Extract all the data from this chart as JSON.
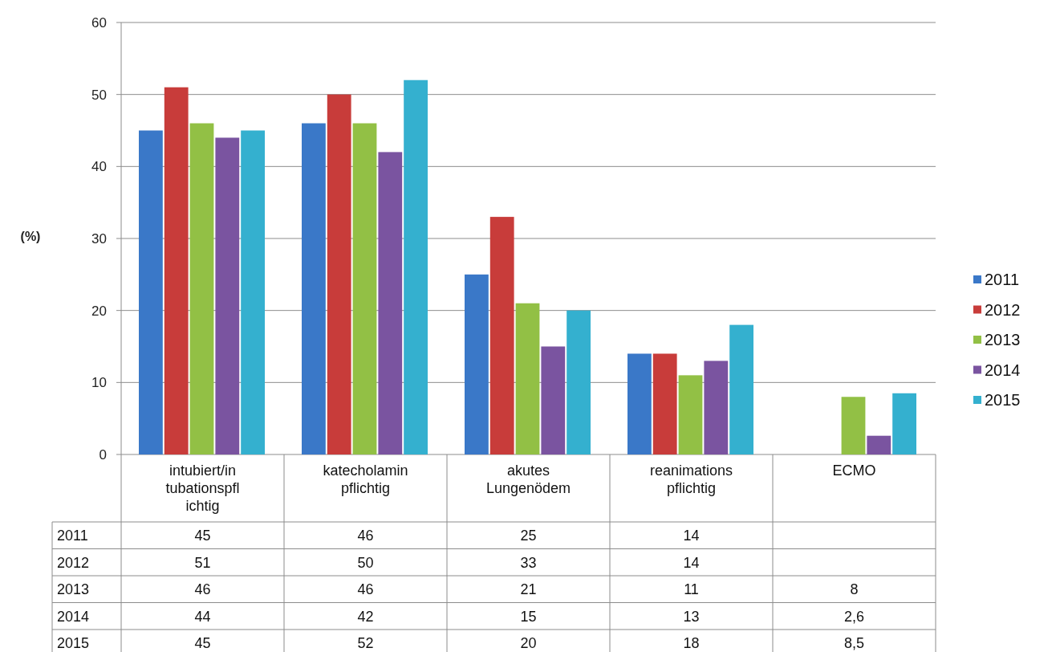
{
  "chart_data": {
    "type": "bar",
    "ylabel": "(%)",
    "categories": [
      "intubiert/intubationspflichtig",
      "katecholaminpflichtig",
      "akutes Lungenödem",
      "reanimationspflichtig",
      "ECMO"
    ],
    "series": [
      {
        "name": "2011",
        "color": "#3a78c8",
        "values": [
          45,
          46,
          25,
          14,
          null
        ],
        "value_labels": [
          "45",
          "46",
          "25",
          "14",
          null
        ]
      },
      {
        "name": "2012",
        "color": "#c83c3a",
        "values": [
          51,
          50,
          33,
          14,
          null
        ],
        "value_labels": [
          "51",
          "50",
          "33",
          "14",
          null
        ]
      },
      {
        "name": "2013",
        "color": "#92c045",
        "values": [
          46,
          46,
          21,
          11,
          8
        ],
        "value_labels": [
          "46",
          "46",
          "21",
          "11",
          "8"
        ]
      },
      {
        "name": "2014",
        "color": "#7a54a0",
        "values": [
          44,
          42,
          15,
          13,
          2.6
        ],
        "value_labels": [
          "44",
          "42",
          "15",
          "13",
          "2,6"
        ]
      },
      {
        "name": "2015",
        "color": "#34b0cf",
        "values": [
          45,
          52,
          20,
          18,
          8.5
        ],
        "value_labels": [
          "45",
          "52",
          "20",
          "18",
          "8,5"
        ]
      }
    ],
    "ylim": [
      0,
      60
    ],
    "yticks": [
      0,
      10,
      20,
      30,
      40,
      50,
      60
    ],
    "grid": "y",
    "legend": "right"
  }
}
